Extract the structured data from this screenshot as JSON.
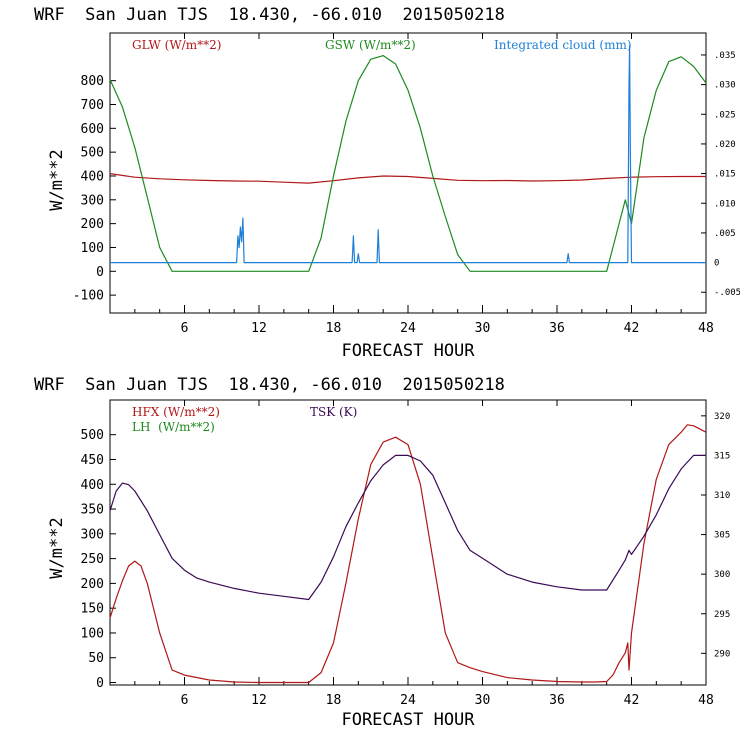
{
  "charts": [
    {
      "title": "WRF  San Juan TJS  18.430, -66.010  2015050218",
      "xlabel": "FORECAST HOUR",
      "ylabel": "W/m**2",
      "legend": [
        {
          "label": "GLW (W/m**2)",
          "color": "#b01818"
        },
        {
          "label": "GSW (W/m**2)",
          "color": "#1e8a1e"
        },
        {
          "label": "Integrated cloud (mm)",
          "color": "#1e7fd6"
        }
      ],
      "xticks": [
        "6",
        "12",
        "18",
        "24",
        "30",
        "36",
        "42",
        "48"
      ],
      "yticks": [
        "800",
        "700",
        "600",
        "500",
        "400",
        "300",
        "200",
        "100",
        "0",
        "-100"
      ],
      "rticks": [
        ".035",
        ".030",
        ".025",
        ".020",
        ".015",
        ".010",
        ".005",
        "0",
        "-.005"
      ]
    },
    {
      "title": "WRF  San Juan TJS  18.430, -66.010  2015050218",
      "xlabel": "FORECAST HOUR",
      "ylabel": "W/m**2",
      "legend": [
        {
          "label": "HFX (W/m**2)",
          "color": "#b01818"
        },
        {
          "label": "LH  (W/m**2)",
          "color": "#1e8a1e"
        },
        {
          "label": "TSK (K)",
          "color": "#3a0b55"
        }
      ],
      "xticks": [
        "6",
        "12",
        "18",
        "24",
        "30",
        "36",
        "42",
        "48"
      ],
      "yticks": [
        "500",
        "450",
        "400",
        "350",
        "300",
        "250",
        "200",
        "150",
        "100",
        "50",
        "0"
      ],
      "rticks": [
        "320",
        "315",
        "310",
        "305",
        "300",
        "295",
        "290"
      ]
    }
  ],
  "chart_data": [
    {
      "type": "line",
      "title": "WRF  San Juan TJS  18.430, -66.010  2015050218",
      "xlabel": "FORECAST HOUR",
      "ylabel": "W/m**2",
      "xlim": [
        0,
        48
      ],
      "ylim": [
        -175,
        1000
      ],
      "y2lim": [
        -0.0085,
        0.0387
      ],
      "series": [
        {
          "name": "GLW (W/m**2)",
          "axis": "left",
          "color": "#b01818",
          "x": [
            0,
            2,
            4,
            6,
            8,
            10,
            12,
            14,
            16,
            18,
            20,
            22,
            24,
            26,
            28,
            30,
            32,
            34,
            36,
            38,
            40,
            42,
            44,
            46,
            48
          ],
          "y": [
            410,
            395,
            388,
            384,
            381,
            379,
            378,
            374,
            370,
            380,
            392,
            400,
            398,
            390,
            382,
            380,
            381,
            379,
            380,
            383,
            390,
            395,
            397,
            398,
            398
          ]
        },
        {
          "name": "GSW (W/m**2)",
          "axis": "left",
          "color": "#1e8a1e",
          "x": [
            0,
            1,
            2,
            3,
            4,
            5,
            16,
            17,
            18,
            19,
            20,
            21,
            22,
            23,
            24,
            25,
            26,
            27,
            28,
            29,
            40,
            41,
            41.5,
            42,
            43,
            44,
            45,
            46,
            47,
            48
          ],
          "y": [
            805,
            690,
            520,
            310,
            100,
            0,
            0,
            140,
            400,
            630,
            800,
            890,
            905,
            870,
            760,
            600,
            400,
            230,
            70,
            0,
            0,
            200,
            300,
            200,
            560,
            760,
            880,
            900,
            860,
            790
          ]
        },
        {
          "name": "Integrated cloud (mm)",
          "axis": "right",
          "color": "#1e7fd6",
          "x": [
            0,
            10.2,
            10.3,
            10.4,
            10.5,
            10.6,
            10.7,
            10.8,
            19.5,
            19.6,
            19.7,
            19.9,
            20.0,
            20.1,
            21.5,
            21.6,
            21.7,
            36.8,
            36.9,
            37.0,
            41.7,
            41.8,
            41.85,
            41.9,
            41.95,
            42.0,
            48
          ],
          "y": [
            0,
            0,
            0.0045,
            0.0025,
            0.006,
            0.0035,
            0.0075,
            0,
            0,
            0.0045,
            0,
            0,
            0.0015,
            0,
            0,
            0.0055,
            0,
            0,
            0.0015,
            0,
            0,
            0.03,
            0.0365,
            0.02,
            0.009,
            0,
            0
          ]
        }
      ]
    },
    {
      "type": "line",
      "title": "WRF  San Juan TJS  18.430, -66.010  2015050218",
      "xlabel": "FORECAST HOUR",
      "ylabel": "W/m**2",
      "xlim": [
        0,
        48
      ],
      "ylim": [
        -5,
        570
      ],
      "y2lim": [
        286,
        322
      ],
      "series": [
        {
          "name": "HFX (W/m**2)",
          "axis": "left",
          "color": "#b01818",
          "x": [
            0,
            0.5,
            1,
            1.5,
            2,
            2.5,
            3,
            4,
            5,
            6,
            8,
            10,
            12,
            14,
            16,
            17,
            18,
            19,
            20,
            21,
            22,
            23,
            24,
            25,
            26,
            27,
            28,
            29,
            30,
            32,
            34,
            36,
            38,
            39,
            40,
            40.5,
            41,
            41.5,
            41.7,
            41.8,
            42,
            43,
            44,
            45,
            46,
            46.5,
            47,
            48
          ],
          "y": [
            130,
            170,
            205,
            235,
            245,
            235,
            200,
            100,
            25,
            15,
            5,
            1,
            0,
            0,
            0,
            20,
            80,
            200,
            330,
            440,
            485,
            495,
            480,
            400,
            250,
            100,
            40,
            30,
            22,
            10,
            5,
            2,
            1,
            1,
            2,
            15,
            40,
            60,
            80,
            25,
            100,
            280,
            410,
            480,
            505,
            520,
            518,
            505
          ]
        },
        {
          "name": "TSK (K)",
          "axis": "right",
          "color": "#3a0b55",
          "x": [
            0,
            0.5,
            1,
            1.5,
            2,
            3,
            4,
            5,
            6,
            7,
            8,
            10,
            12,
            14,
            16,
            17,
            18,
            19,
            20,
            21,
            22,
            23,
            24,
            25,
            26,
            27,
            28,
            29,
            30,
            32,
            34,
            36,
            38,
            40,
            41,
            41.5,
            41.8,
            42,
            43,
            44,
            45,
            46,
            47,
            48
          ],
          "y": [
            308,
            310.5,
            311.5,
            311.3,
            310.5,
            308,
            305,
            302,
            300.5,
            299.5,
            299,
            298.2,
            297.6,
            297.2,
            296.8,
            299,
            302.2,
            306,
            309,
            311.8,
            313.8,
            315,
            315,
            314.3,
            312.5,
            309,
            305.5,
            303,
            302,
            300,
            299,
            298.4,
            298,
            298,
            300.5,
            301.8,
            303,
            302.5,
            304.8,
            307.5,
            310.8,
            313.3,
            315,
            315
          ]
        }
      ]
    }
  ]
}
